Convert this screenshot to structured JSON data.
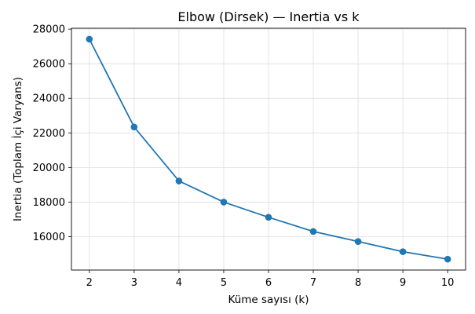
{
  "chart_data": {
    "type": "line",
    "title": "Elbow (Dirsek) — Inertia vs k",
    "xlabel": "Küme sayısı (k)",
    "ylabel": "Inertia (Toplam İçi Varyans)",
    "x": [
      2,
      3,
      4,
      5,
      6,
      7,
      8,
      9,
      10
    ],
    "series": [
      {
        "values": [
          27420,
          22340,
          19220,
          18000,
          17120,
          16300,
          15720,
          15130,
          14700
        ]
      }
    ],
    "xlim": [
      1.6,
      10.4
    ],
    "ylim": [
      14070,
      28050
    ],
    "xticks": [
      2,
      3,
      4,
      5,
      6,
      7,
      8,
      9,
      10
    ],
    "yticks": [
      16000,
      18000,
      20000,
      22000,
      24000,
      26000,
      28000
    ],
    "grid": true,
    "legend": "none",
    "color": "#1f77b4",
    "marker": "circle"
  }
}
